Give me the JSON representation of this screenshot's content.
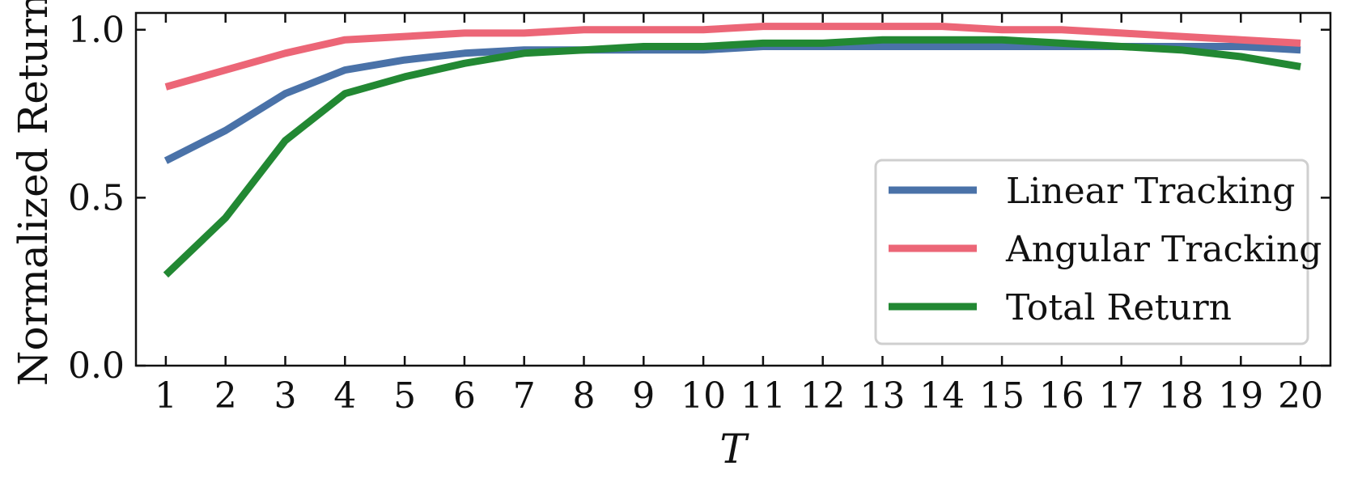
{
  "chart_data": {
    "type": "line",
    "title": "",
    "xlabel": "T",
    "ylabel": "Normalized Return",
    "x": [
      1,
      2,
      3,
      4,
      5,
      6,
      7,
      8,
      9,
      10,
      11,
      12,
      13,
      14,
      15,
      16,
      17,
      18,
      19,
      20
    ],
    "xlim": [
      0.5,
      20.5
    ],
    "ylim": [
      0.0,
      1.05
    ],
    "yticks": [
      0.0,
      0.5,
      1.0
    ],
    "ytick_labels": [
      "0.0",
      "0.5",
      "1.0"
    ],
    "xtick_labels": [
      "1",
      "2",
      "3",
      "4",
      "5",
      "6",
      "7",
      "8",
      "9",
      "10",
      "11",
      "12",
      "13",
      "14",
      "15",
      "16",
      "17",
      "18",
      "19",
      "20"
    ],
    "legend_position": "lower-right",
    "grid": false,
    "series": [
      {
        "name": "Linear Tracking",
        "color": "#4a72a8",
        "values": [
          0.61,
          0.7,
          0.81,
          0.88,
          0.91,
          0.93,
          0.94,
          0.94,
          0.94,
          0.94,
          0.95,
          0.95,
          0.95,
          0.95,
          0.95,
          0.95,
          0.95,
          0.95,
          0.95,
          0.94
        ]
      },
      {
        "name": "Angular Tracking",
        "color": "#ec6677",
        "values": [
          0.83,
          0.88,
          0.93,
          0.97,
          0.98,
          0.99,
          0.99,
          1.0,
          1.0,
          1.0,
          1.01,
          1.01,
          1.01,
          1.01,
          1.0,
          1.0,
          0.99,
          0.98,
          0.97,
          0.96
        ]
      },
      {
        "name": "Total Return",
        "color": "#228833",
        "values": [
          0.27,
          0.44,
          0.67,
          0.81,
          0.86,
          0.9,
          0.93,
          0.94,
          0.95,
          0.95,
          0.96,
          0.96,
          0.97,
          0.97,
          0.97,
          0.96,
          0.95,
          0.94,
          0.92,
          0.89
        ]
      }
    ]
  }
}
